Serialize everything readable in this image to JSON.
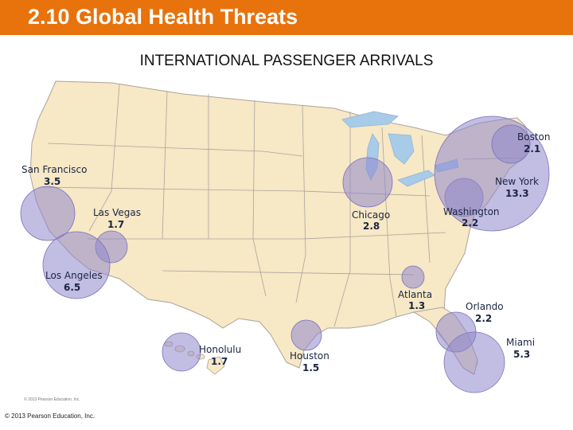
{
  "header": {
    "title": "2.10 Global Health Threats"
  },
  "map": {
    "title": "INTERNATIONAL PASSENGER ARRIVALS",
    "colors": {
      "bubble": "#8f86cc",
      "land": "#f7e8c6",
      "water": "#a8cbe8",
      "border": "#aaa39a"
    },
    "cities": [
      {
        "name": "San Francisco",
        "value": "3.5"
      },
      {
        "name": "Las Vegas",
        "value": "1.7"
      },
      {
        "name": "Los Angeles",
        "value": "6.5"
      },
      {
        "name": "Honolulu",
        "value": "1.7"
      },
      {
        "name": "Houston",
        "value": "1.5"
      },
      {
        "name": "Chicago",
        "value": "2.8"
      },
      {
        "name": "Atlanta",
        "value": "1.3"
      },
      {
        "name": "Orlando",
        "value": "2.2"
      },
      {
        "name": "Miami",
        "value": "5.3"
      },
      {
        "name": "Washington",
        "value": "2.2"
      },
      {
        "name": "New York",
        "value": "13.3"
      },
      {
        "name": "Boston",
        "value": "2.1"
      }
    ]
  },
  "footer": {
    "copyright": "© 2013 Pearson Education, Inc.",
    "inset_copyright": "© 2013 Pearson Education, Inc."
  }
}
